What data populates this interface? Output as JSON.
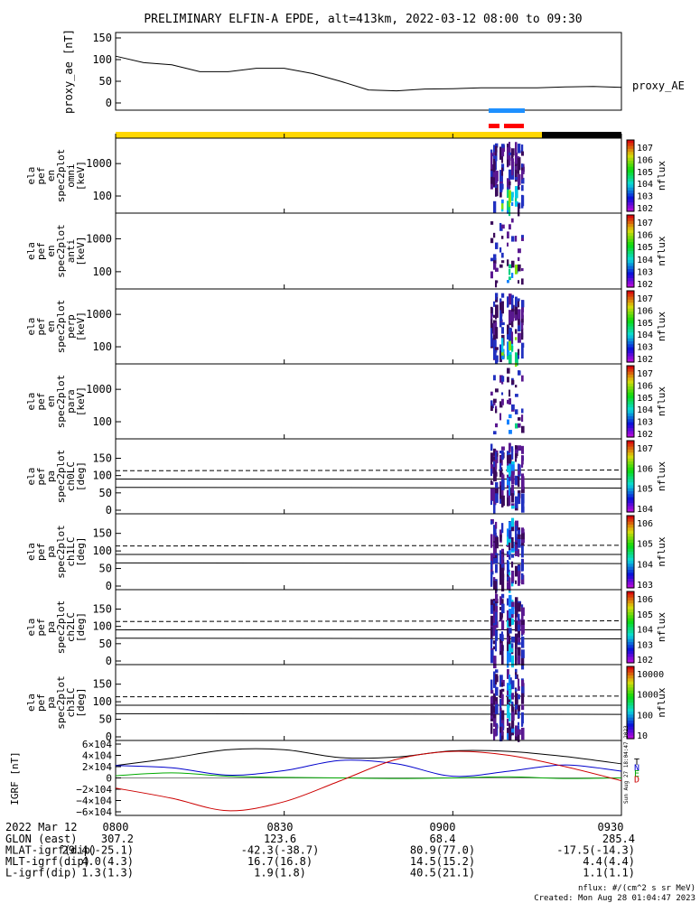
{
  "title": "PRELIMINARY ELFIN-A EPDE, alt=413km, 2022-03-12 08:00 to 09:30",
  "time_axis": {
    "date_label": "2022 Mar 12",
    "ticks": [
      "0800",
      "0830",
      "0900",
      "0930"
    ],
    "start": "08:00",
    "end": "09:30"
  },
  "ephemeris": [
    {
      "label": "GLON (east)",
      "values": [
        "307.2",
        "123.6",
        "68.4",
        "285.4"
      ]
    },
    {
      "label": "MLAT-igrf(dip)",
      "values": [
        "29.4(-25.1)",
        "-42.3(-38.7)",
        "80.9(77.0)",
        "-17.5(-14.3)"
      ]
    },
    {
      "label": "MLT-igrf(dip)",
      "values": [
        "4.0(4.3)",
        "16.7(16.8)",
        "14.5(15.2)",
        "4.4(4.4)"
      ]
    },
    {
      "label": "L-igrf(dip)",
      "values": [
        "1.3(1.3)",
        "1.9(1.8)",
        "40.5(21.1)",
        "1.1(1.1)"
      ]
    }
  ],
  "footer": {
    "units": "nflux: #/(cm^2 s sr MeV)",
    "created": "Created: Mon Aug 28 01:04:47 2023",
    "stamp": "Sun Aug 27 18:04:47 2023"
  },
  "colors": {
    "proxy_line": "#000000",
    "sci_bar": "#1e90ff",
    "sci_bar2": "#ff0000",
    "sunlit_bar": "#ffd700",
    "shadow_bar": "#000000",
    "igrf_total": "#000000",
    "igrf_n": "#0000cc",
    "igrf_e": "#00aa00",
    "igrf_d": "#cc0000"
  },
  "chart_data": [
    {
      "type": "line",
      "ylabel": "proxy_ae [nT]",
      "series_label": "proxy_AE",
      "ylim": [
        0,
        150
      ],
      "yticks": [
        "150",
        "100",
        "50",
        "0"
      ],
      "x_minutes": [
        0,
        5,
        10,
        15,
        20,
        25,
        30,
        35,
        40,
        45,
        50,
        55,
        60,
        65,
        70,
        75,
        80,
        85,
        90
      ],
      "values": [
        108,
        93,
        88,
        72,
        72,
        80,
        80,
        68,
        50,
        30,
        28,
        32,
        33,
        35,
        35,
        35,
        37,
        38,
        36
      ]
    },
    {
      "type": "heatmap",
      "ylabel": [
        "ela",
        "pef",
        "en",
        "spec2plot",
        "omni",
        "[keV]"
      ],
      "yticks": [
        "1000",
        "100"
      ],
      "zlabel": "nflux",
      "zticks": [
        "10^7",
        "10^6",
        "10^5",
        "10^4",
        "10^3",
        "10^2"
      ]
    },
    {
      "type": "heatmap",
      "ylabel": [
        "ela",
        "pef",
        "en",
        "spec2plot",
        "anti",
        "[keV]"
      ],
      "yticks": [
        "1000",
        "100"
      ],
      "zlabel": "nflux",
      "zticks": [
        "10^7",
        "10^6",
        "10^5",
        "10^4",
        "10^3",
        "10^2"
      ]
    },
    {
      "type": "heatmap",
      "ylabel": [
        "ela",
        "pef",
        "en",
        "spec2plot",
        "perp",
        "[keV]"
      ],
      "yticks": [
        "1000",
        "100"
      ],
      "zlabel": "nflux",
      "zticks": [
        "10^7",
        "10^6",
        "10^5",
        "10^4",
        "10^3",
        "10^2"
      ]
    },
    {
      "type": "heatmap",
      "ylabel": [
        "ela",
        "pef",
        "en",
        "spec2plot",
        "para",
        "[keV]"
      ],
      "yticks": [
        "1000",
        "100"
      ],
      "zlabel": "nflux",
      "zticks": [
        "10^7",
        "10^6",
        "10^5",
        "10^4",
        "10^3",
        "10^2"
      ]
    },
    {
      "type": "heatmap",
      "ylabel": [
        "ela",
        "pef",
        "pa",
        "spec2plot",
        "ch0LC",
        "[deg]"
      ],
      "yticks": [
        "150",
        "100",
        "50",
        "0"
      ],
      "zlabel": "nflux",
      "zticks": [
        "10^7",
        "10^6",
        "10^5",
        "10^4"
      ]
    },
    {
      "type": "heatmap",
      "ylabel": [
        "ela",
        "pef",
        "pa",
        "spec2plot",
        "ch1LC",
        "[deg]"
      ],
      "yticks": [
        "150",
        "100",
        "50",
        "0"
      ],
      "zlabel": "nflux",
      "zticks": [
        "10^6",
        "10^5",
        "10^4",
        "10^3"
      ]
    },
    {
      "type": "heatmap",
      "ylabel": [
        "ela",
        "pef",
        "pa",
        "spec2plot",
        "ch2LC",
        "[deg]"
      ],
      "yticks": [
        "150",
        "100",
        "50",
        "0"
      ],
      "zlabel": "nflux",
      "zticks": [
        "10^6",
        "10^5",
        "10^4",
        "10^3",
        "10^2"
      ]
    },
    {
      "type": "heatmap",
      "ylabel": [
        "ela",
        "pef",
        "pa",
        "spec2plot",
        "ch3LC",
        "[deg]"
      ],
      "yticks": [
        "150",
        "100",
        "50",
        "0"
      ],
      "zlabel": "nflux",
      "zticks": [
        "10000",
        "1000",
        "100",
        "10"
      ]
    },
    {
      "type": "line",
      "ylabel": "IGRF [nT]",
      "yticks": [
        "6×10^4",
        "4×10^4",
        "2×10^4",
        "0",
        "−2×10^4",
        "−4×10^4",
        "−6×10^4"
      ],
      "ylim": [
        -60000,
        60000
      ],
      "legend": [
        "T",
        "N",
        "E",
        "D"
      ],
      "x_minutes": [
        0,
        10,
        20,
        30,
        40,
        50,
        60,
        70,
        80,
        90
      ],
      "series": [
        {
          "name": "T",
          "values": [
            22000,
            35000,
            50000,
            50000,
            36000,
            37000,
            48000,
            47000,
            38000,
            25000
          ]
        },
        {
          "name": "N",
          "values": [
            22000,
            18000,
            5000,
            13000,
            31000,
            25000,
            3000,
            12000,
            23000,
            12000
          ]
        },
        {
          "name": "E",
          "values": [
            4000,
            9000,
            3000,
            1000,
            0,
            -1000,
            0,
            2000,
            -1000,
            0
          ]
        },
        {
          "name": "D",
          "values": [
            -18000,
            -36000,
            -58000,
            -42000,
            -5000,
            33000,
            47000,
            40000,
            20000,
            -5000
          ]
        }
      ]
    }
  ]
}
